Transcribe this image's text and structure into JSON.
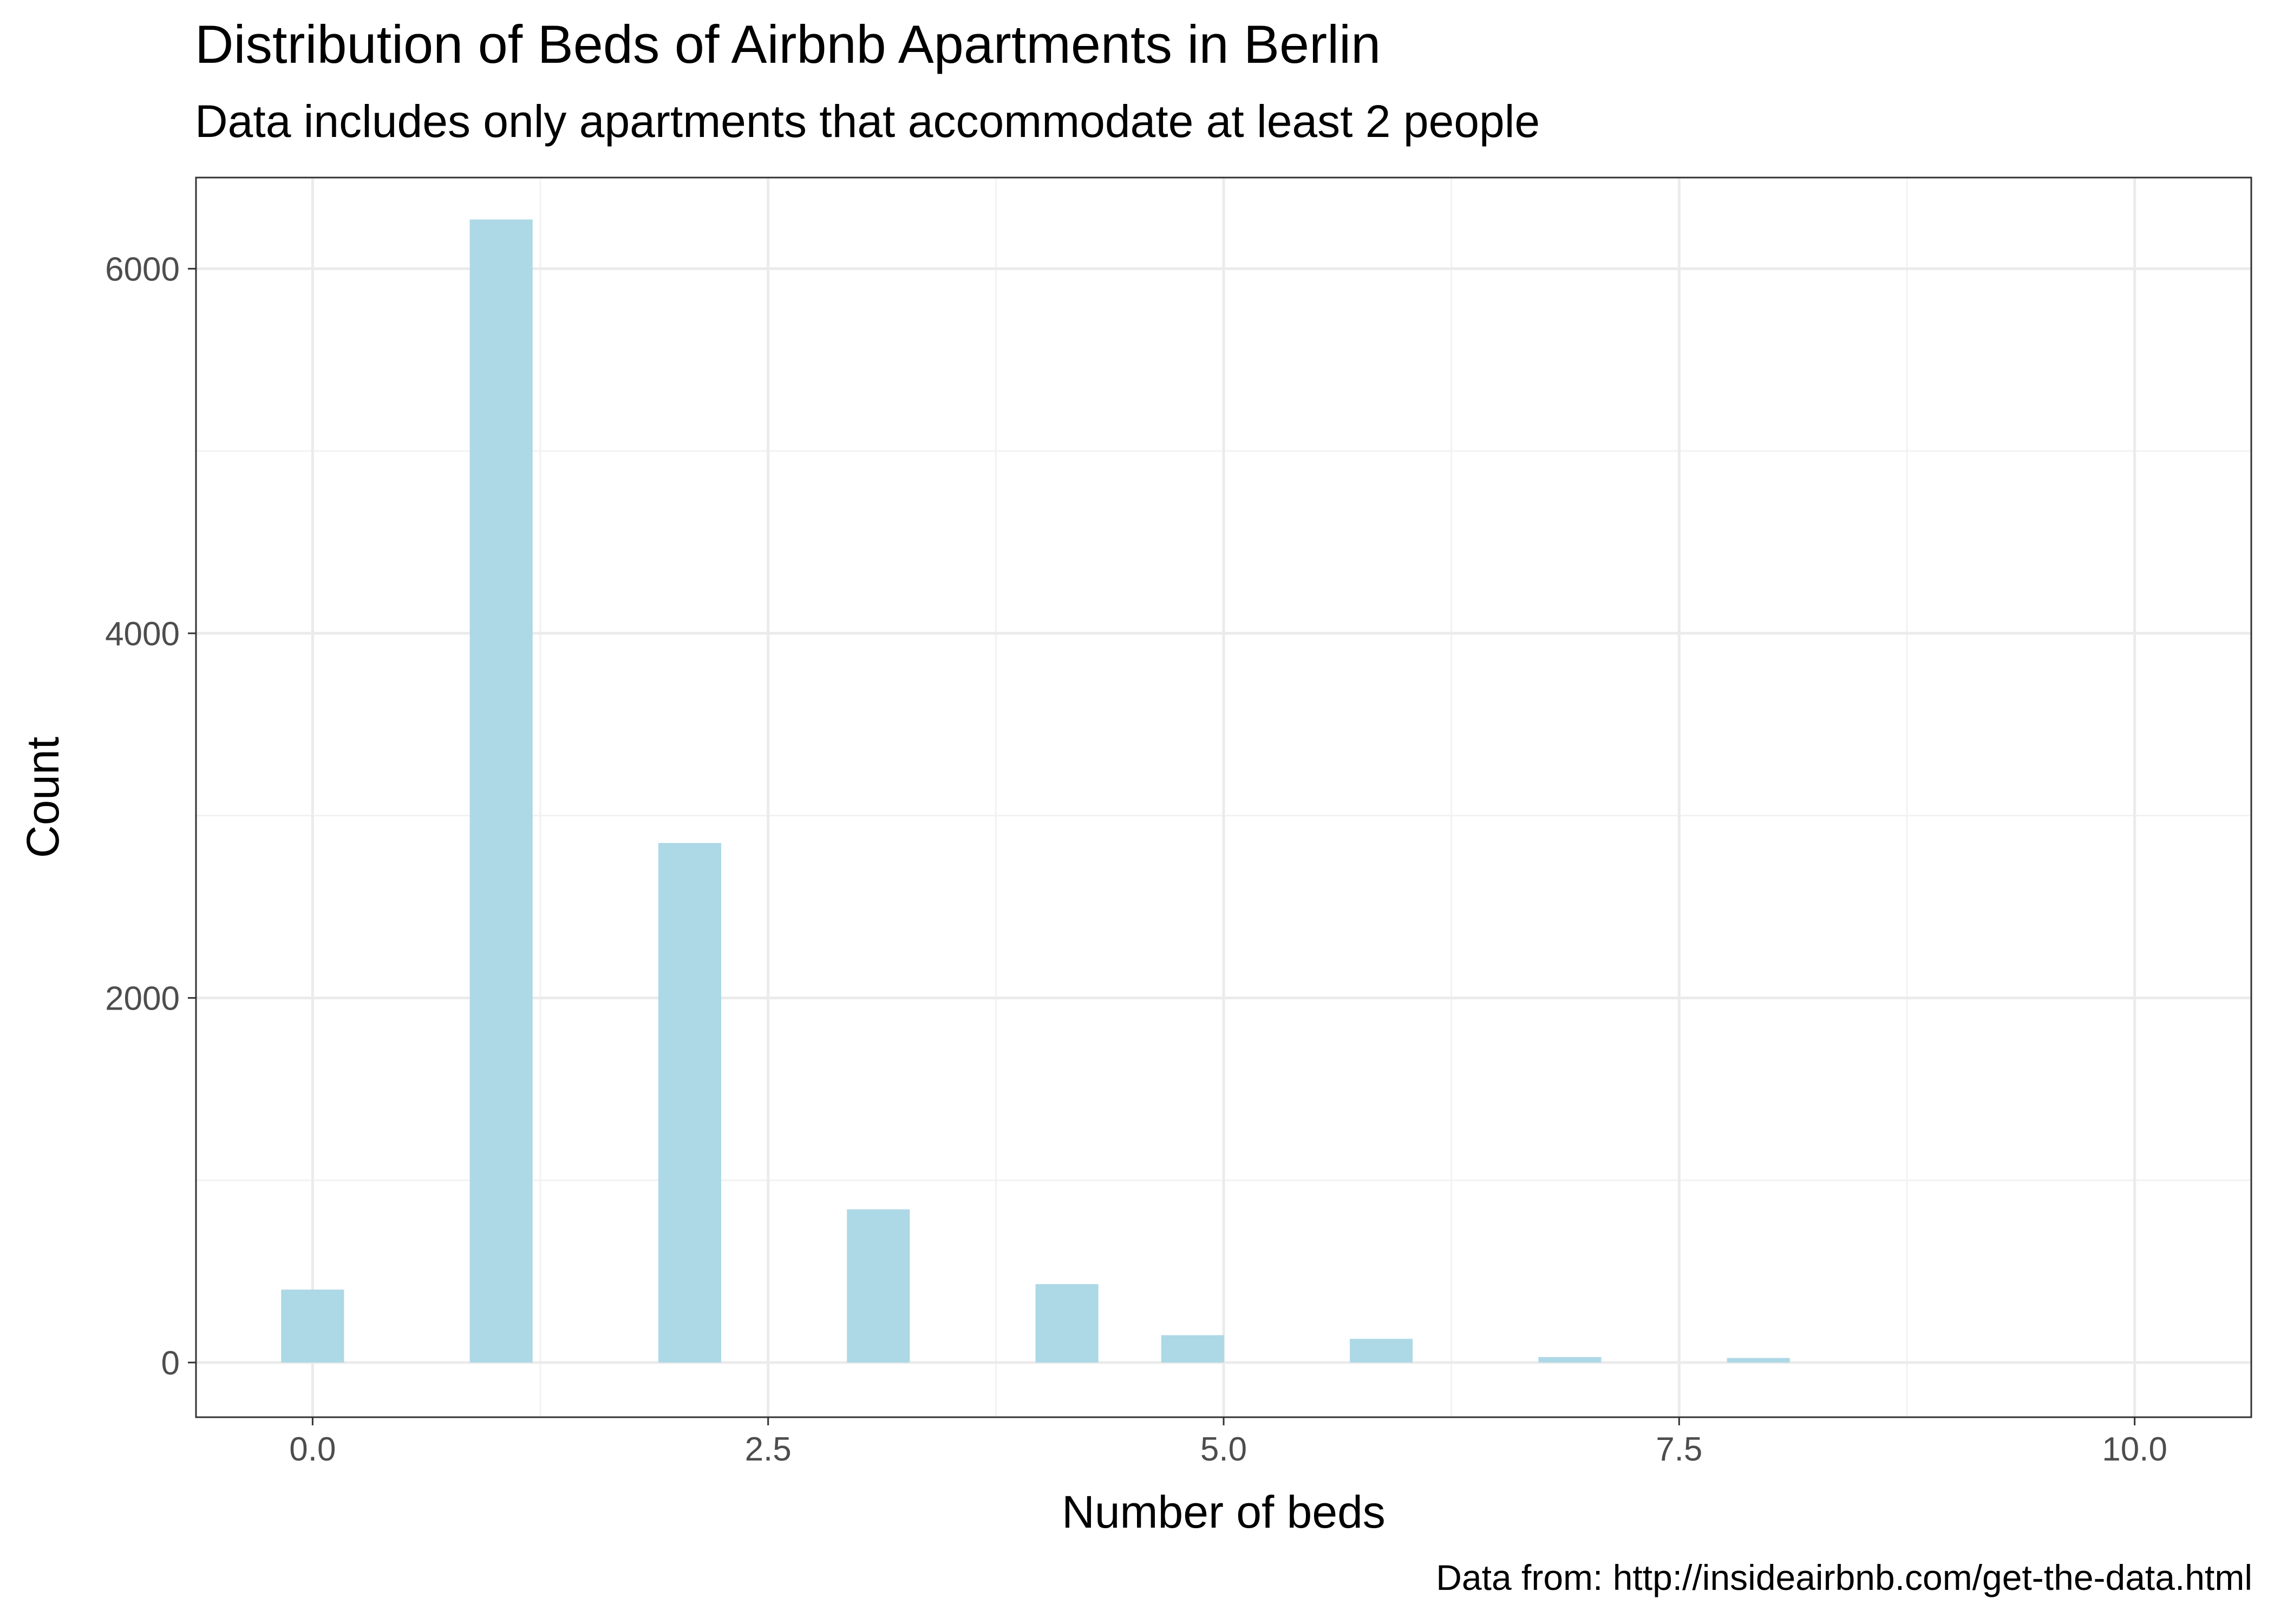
{
  "chart_data": {
    "type": "bar",
    "title": "Distribution of Beds of Airbnb Apartments in Berlin",
    "subtitle": "Data includes only apartments that accommodate at least 2 people",
    "xlabel": "Number of beds",
    "ylabel": "Count",
    "caption": "Data from: http://insideairbnb.com/get-the-data.html",
    "xlim": [
      -0.64,
      10.64
    ],
    "ylim": [
      -300,
      6500
    ],
    "x_ticks": [
      0,
      2.5,
      5,
      7.5,
      10
    ],
    "x_tick_labels": [
      "0.0",
      "2.5",
      "5.0",
      "7.5",
      "10.0"
    ],
    "y_ticks": [
      0,
      2000,
      4000,
      6000
    ],
    "y_tick_labels": [
      "0",
      "2000",
      "4000",
      "6000"
    ],
    "bin_width": 0.345,
    "bins": [
      {
        "x": 0.0,
        "count": 400
      },
      {
        "x": 1.035,
        "count": 6270
      },
      {
        "x": 2.07,
        "count": 2850
      },
      {
        "x": 3.105,
        "count": 840
      },
      {
        "x": 4.14,
        "count": 430
      },
      {
        "x": 4.83,
        "count": 150
      },
      {
        "x": 5.865,
        "count": 130
      },
      {
        "x": 6.9,
        "count": 30
      },
      {
        "x": 7.935,
        "count": 25
      }
    ],
    "bar_color": "#add8e6",
    "grid": true,
    "theme": "bw"
  }
}
